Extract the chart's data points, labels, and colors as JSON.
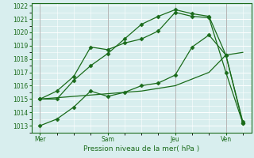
{
  "xlabel": "Pression niveau de la mer( hPa )",
  "background_color": "#d8eeee",
  "grid_color_major": "#ffffff",
  "line_color": "#1a6b1a",
  "ylim": [
    1012.5,
    1022.2
  ],
  "yticks": [
    1013,
    1014,
    1015,
    1016,
    1017,
    1018,
    1019,
    1020,
    1021,
    1022
  ],
  "xtick_labels": [
    "Mer",
    "Sam",
    "Jeu",
    "Ven"
  ],
  "xtick_positions": [
    0,
    4,
    8,
    11
  ],
  "total_points": 13,
  "line1_x": [
    0,
    1,
    2,
    3,
    4,
    5,
    6,
    7,
    8,
    9,
    10,
    11,
    12
  ],
  "line1_y": [
    1015.0,
    1015.1,
    1015.2,
    1015.3,
    1015.4,
    1015.5,
    1015.6,
    1015.8,
    1016.0,
    1016.5,
    1017.0,
    1018.3,
    1018.5
  ],
  "line2_x": [
    0,
    1,
    2,
    3,
    4,
    5,
    6,
    7,
    8,
    9,
    10,
    11,
    12
  ],
  "line2_y": [
    1013.0,
    1013.5,
    1014.4,
    1015.6,
    1015.2,
    1015.5,
    1016.0,
    1016.2,
    1016.8,
    1018.9,
    1019.8,
    1018.3,
    1013.2
  ],
  "line3_x": [
    0,
    1,
    2,
    3,
    4,
    5,
    6,
    7,
    8,
    9,
    10,
    11,
    12
  ],
  "line3_y": [
    1015.0,
    1015.6,
    1016.7,
    1018.9,
    1018.7,
    1019.2,
    1019.5,
    1020.1,
    1021.5,
    1021.2,
    1021.1,
    1017.0,
    1013.2
  ],
  "line4_x": [
    0,
    1,
    2,
    3,
    4,
    5,
    6,
    7,
    8,
    9,
    10,
    11,
    12
  ],
  "line4_y": [
    1015.0,
    1015.0,
    1016.4,
    1017.5,
    1018.4,
    1019.5,
    1020.6,
    1021.2,
    1021.7,
    1021.4,
    1021.2,
    1018.3,
    1013.3
  ]
}
